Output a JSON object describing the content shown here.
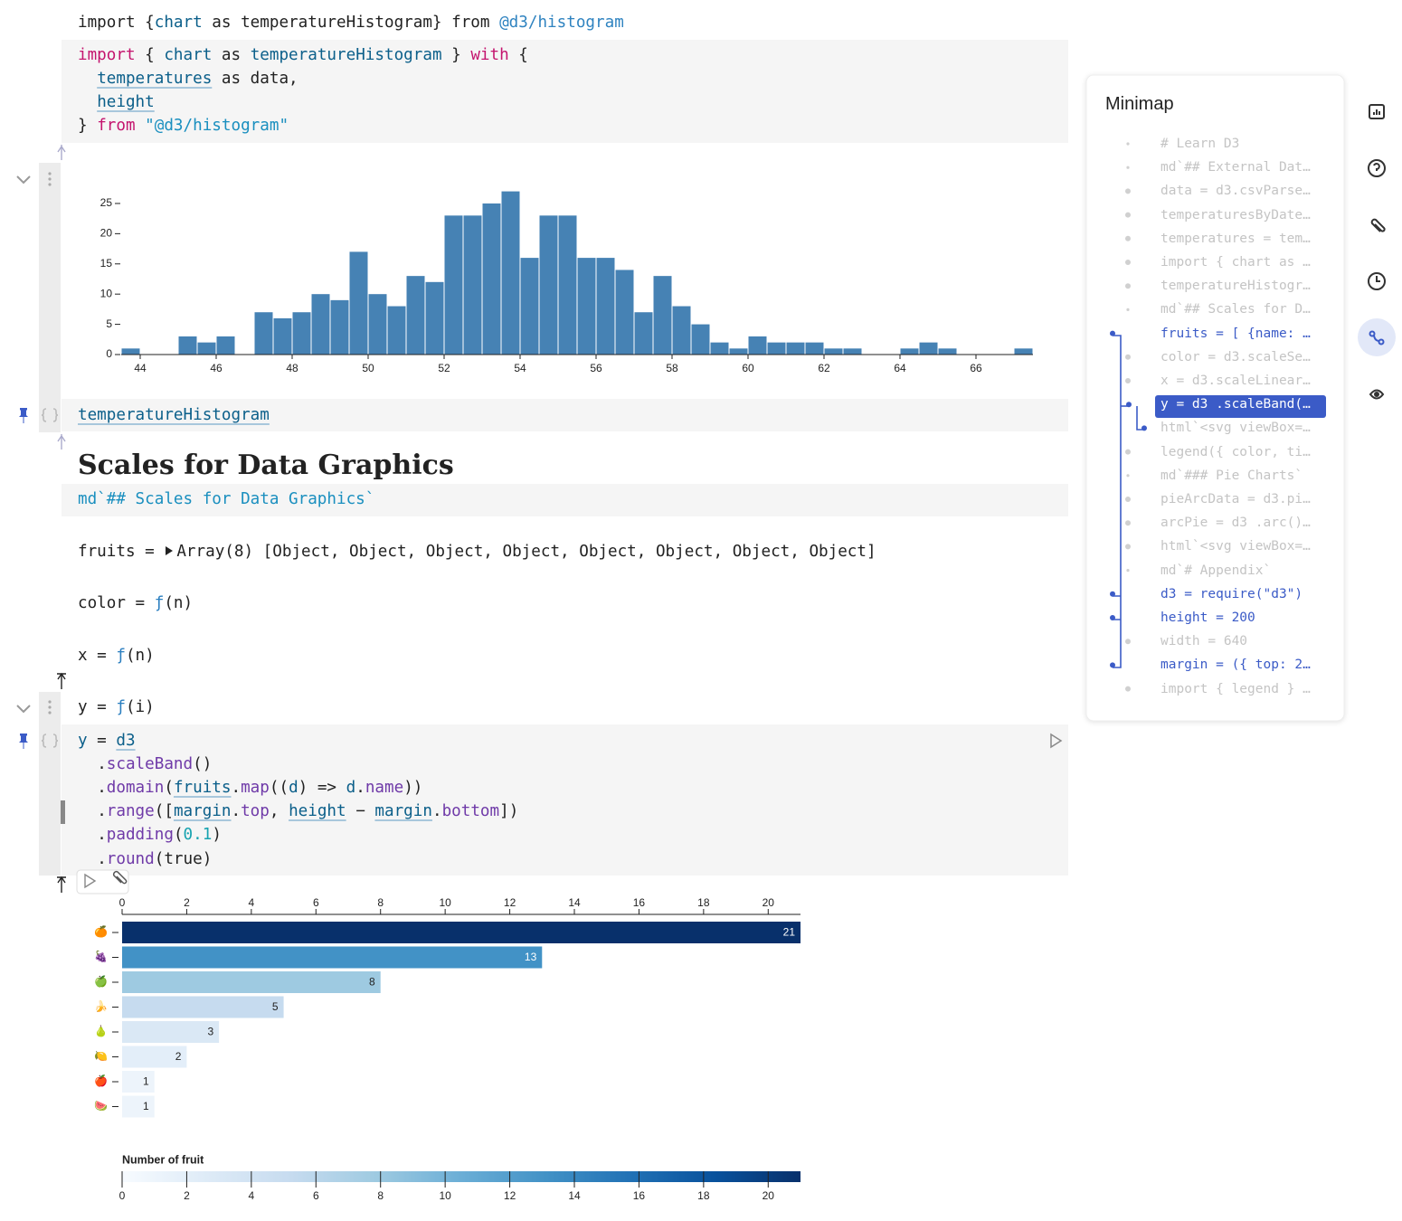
{
  "cells": [
    {
      "lines": [
        [
          "import {",
          "chart",
          " as temperatureHistogram} from ",
          "@d3/histogram"
        ]
      ]
    },
    {
      "lines": [
        [
          "import",
          " { ",
          "chart",
          " as ",
          "temperatureHistogram",
          " } ",
          "with",
          " {"
        ],
        [
          "temperatures",
          " as data,"
        ],
        [
          "height"
        ],
        [
          "} ",
          "from",
          " ",
          "\"@d3/histogram\""
        ]
      ]
    },
    {
      "lines": [
        [
          "temperatureHistogram"
        ]
      ]
    },
    {
      "lines": [
        [
          "md`## Scales for Data Graphics`"
        ]
      ]
    },
    {
      "lines": [
        [
          "y",
          " = ",
          "d3"
        ],
        [
          ".",
          "scaleBand",
          "()"
        ],
        [
          ".",
          "domain",
          "(",
          "fruits",
          ".",
          "map",
          "((",
          "d",
          ") => ",
          "d",
          ".",
          "name",
          "))"
        ],
        [
          ".",
          "range",
          "([",
          "margin",
          ".",
          "top",
          ", ",
          "height",
          " − ",
          "margin",
          ".",
          "bottom",
          "])"
        ],
        [
          ".",
          "padding",
          "(",
          "0.1",
          ")"
        ],
        [
          ".",
          "round",
          "(true)"
        ]
      ]
    }
  ],
  "heading": "Scales for Data Graphics",
  "outputs": [
    [
      "fruits = ",
      "Array(8) [Object, Object, Object, Object, Object, Object, Object, Object]"
    ],
    [
      "color = ",
      "ƒ",
      "(n)"
    ],
    [
      "x = ",
      "ƒ",
      "(n)"
    ],
    [
      "y = ",
      "ƒ",
      "(i)"
    ]
  ],
  "chart_data": [
    {
      "type": "histogram",
      "color": "#4682b4",
      "bins": [
        43.5,
        44,
        44.5,
        45,
        45.5,
        46,
        46.5,
        47,
        47.5,
        48,
        48.5,
        49,
        49.5,
        50,
        50.5,
        51,
        51.5,
        52,
        52.5,
        53,
        53.5,
        54,
        54.5,
        55,
        55.5,
        56,
        56.5,
        57,
        57.5,
        58,
        58.5,
        59,
        59.5,
        60,
        60.5,
        61,
        61.5,
        62,
        62.5,
        63,
        63.5,
        64,
        64.5,
        65,
        65.5,
        66,
        66.5,
        67,
        67.5
      ],
      "values": [
        1,
        0,
        0,
        3,
        2,
        3,
        0,
        7,
        6,
        7,
        10,
        9,
        17,
        10,
        8,
        13,
        12,
        23,
        23,
        25,
        27,
        16,
        23,
        23,
        16,
        16,
        14,
        7,
        13,
        8,
        5,
        2,
        1,
        3,
        2,
        2,
        2,
        1,
        1,
        0,
        0,
        1,
        2,
        1,
        0,
        0,
        0,
        1
      ],
      "xlim": [
        43.5,
        67.5
      ],
      "xticks": [
        44,
        46,
        48,
        50,
        52,
        54,
        56,
        58,
        60,
        62,
        64,
        66
      ],
      "ylim": [
        0,
        27
      ],
      "yticks": [
        0,
        5,
        10,
        15,
        20,
        25
      ]
    },
    {
      "type": "bar",
      "orientation": "horizontal",
      "categories": [
        "🍊",
        "🍇",
        "🍏",
        "🍌",
        "🍐",
        "🍋",
        "🍎",
        "🍉"
      ],
      "values": [
        21,
        13,
        8,
        5,
        3,
        2,
        1,
        1
      ],
      "colors": [
        "#08306b",
        "#4292c6",
        "#9ecae1",
        "#c6dbef",
        "#dae8f5",
        "#e3eef9",
        "#edf4fb",
        "#edf4fb"
      ],
      "xlim": [
        0,
        21
      ],
      "xticks": [
        0,
        2,
        4,
        6,
        8,
        10,
        12,
        14,
        16,
        18,
        20
      ],
      "legend": {
        "title": "Number of fruit",
        "xlim": [
          0,
          21
        ],
        "ticks": [
          0,
          2,
          4,
          6,
          8,
          10,
          12,
          14,
          16,
          18,
          20
        ],
        "colors": [
          "#f7fbff",
          "#deebf7",
          "#c6dbef",
          "#9ecae1",
          "#6baed6",
          "#4292c6",
          "#2171b5",
          "#08519c",
          "#08306b"
        ]
      }
    }
  ],
  "minimap": {
    "title": "Minimap",
    "items": [
      "# Learn D3",
      "md`## External Dat…",
      "data = d3.csvParse…",
      "temperaturesByDate…",
      "temperatures = tem…",
      "import { chart as …",
      "temperatureHistogr…",
      "md`## Scales for D…",
      "fruits = [ {name: …",
      "color = d3.scaleSe…",
      "x = d3.scaleLinear…",
      "y = d3 .scaleBand(…",
      "html`<svg viewBox=…",
      "legend({ color, ti…",
      "md`### Pie Charts`",
      "pieArcData = d3.pi…",
      "arcPie = d3 .arc()…",
      "html`<svg viewBox=…",
      "md`# Appendix`",
      "d3 = require(\"d3\")",
      "height = 200",
      "width = 640",
      "margin = ({ top: 2…",
      "import { legend } …"
    ]
  }
}
